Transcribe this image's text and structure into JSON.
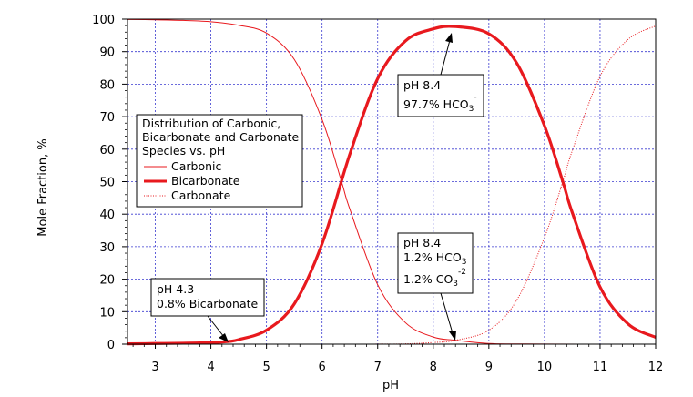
{
  "chart_data": {
    "type": "line",
    "xlabel": "pH",
    "ylabel": "Mole Fraction, %",
    "xlim": [
      2.5,
      12
    ],
    "ylim": [
      0,
      100
    ],
    "xticks": [
      3,
      4,
      5,
      6,
      7,
      8,
      9,
      10,
      11,
      12
    ],
    "yticks": [
      0,
      10,
      20,
      30,
      40,
      50,
      60,
      70,
      80,
      90,
      100
    ],
    "grid": true,
    "legend": {
      "title_lines": [
        "Distribution of Carbonic,",
        "Bicarbonate and Carbonate",
        "Species vs. pH"
      ],
      "placement": "center-left"
    },
    "series": [
      {
        "name": "Carbonic",
        "style": "thin",
        "x": [
          2.5,
          3,
          3.5,
          4,
          4.5,
          5,
          5.5,
          6,
          6.35,
          6.5,
          7,
          7.5,
          8,
          8.4,
          9,
          9.5,
          10,
          11,
          12
        ],
        "values": [
          99.9,
          99.8,
          99.6,
          99.2,
          98.1,
          95.7,
          87.6,
          69.1,
          50,
          41.5,
          18.3,
          6.6,
          2.2,
          1.2,
          0.2,
          0.08,
          0.02,
          0,
          0
        ]
      },
      {
        "name": "Bicarbonate",
        "style": "thick",
        "x": [
          2.5,
          3,
          3.5,
          4,
          4.3,
          4.5,
          5,
          5.5,
          6,
          6.5,
          7,
          7.5,
          8,
          8.4,
          9,
          9.5,
          10,
          10.33,
          10.5,
          11,
          11.5,
          12
        ],
        "values": [
          0.1,
          0.2,
          0.3,
          0.5,
          0.8,
          1.4,
          4.3,
          12.4,
          30.9,
          58.5,
          81.7,
          93.3,
          97,
          97.7,
          95.5,
          86.5,
          67.2,
          50,
          40.5,
          17.6,
          6.3,
          2.1
        ]
      },
      {
        "name": "Carbonate",
        "style": "dotted",
        "x": [
          2.5,
          4,
          6,
          7,
          7.5,
          8,
          8.4,
          9,
          9.5,
          10,
          10.33,
          10.5,
          11,
          11.5,
          12
        ],
        "values": [
          0,
          0,
          0,
          0.02,
          0.1,
          0.5,
          1.2,
          4.3,
          13.5,
          32.8,
          50,
          59.5,
          82.4,
          93.7,
          97.9
        ]
      }
    ],
    "annotations": [
      {
        "lines": [
          "pH 4.3",
          "0.8% Bicarbonate"
        ],
        "point": [
          4.3,
          0.8
        ]
      },
      {
        "lines": [
          "pH 8.4",
          "1.2% HCO3",
          "1.2% CO3-2"
        ],
        "point": [
          8.4,
          1.2
        ]
      },
      {
        "lines": [
          "pH 8.4",
          "97.7% HCO3-"
        ],
        "point": [
          8.4,
          97.7
        ]
      }
    ]
  },
  "colors": {
    "curve": "#e8191e",
    "grid": "#3a3ad0",
    "axis": "#000000"
  },
  "text": {
    "anno1_line1": "pH 4.3",
    "anno1_line2": "0.8% Bicarbonate",
    "anno2_line1": "pH 8.4",
    "anno2_line2_main": "1.2% HCO",
    "anno2_line2_sub": "3",
    "anno2_line3_main": "1.2% CO",
    "anno2_line3_sub": "3",
    "anno2_line3_sup": "-2",
    "anno3_line1": "pH 8.4",
    "anno3_line2_main": "97.7% HCO",
    "anno3_line2_sub": "3",
    "anno3_line2_sup": "-",
    "legend_title_1": "Distribution of Carbonic,",
    "legend_title_2": "Bicarbonate and Carbonate",
    "legend_title_3": "Species vs. pH",
    "legend_item_1": "Carbonic",
    "legend_item_2": "Bicarbonate",
    "legend_item_3": "Carbonate"
  }
}
